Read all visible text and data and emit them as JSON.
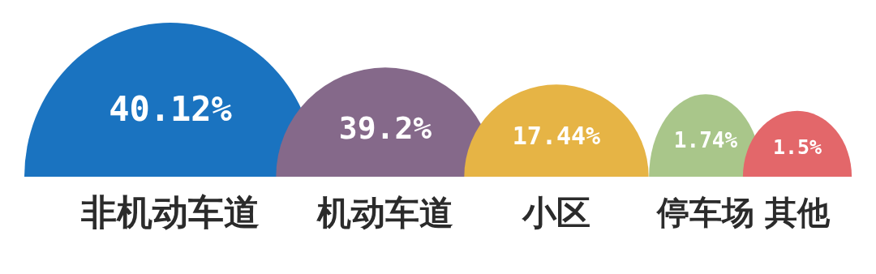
{
  "chart_data": {
    "type": "other",
    "categories": [
      "非机动车道",
      "机动车道",
      "小区",
      "停车场",
      "其他"
    ],
    "values": [
      40.12,
      39.2,
      17.44,
      1.74,
      1.5
    ],
    "value_labels": [
      "40.12%",
      "39.2%",
      "17.44%",
      "1.74%",
      "1.5%"
    ],
    "colors": [
      "#1a73c0",
      "#85698a",
      "#e6b445",
      "#a9c68a",
      "#e3676a"
    ]
  }
}
